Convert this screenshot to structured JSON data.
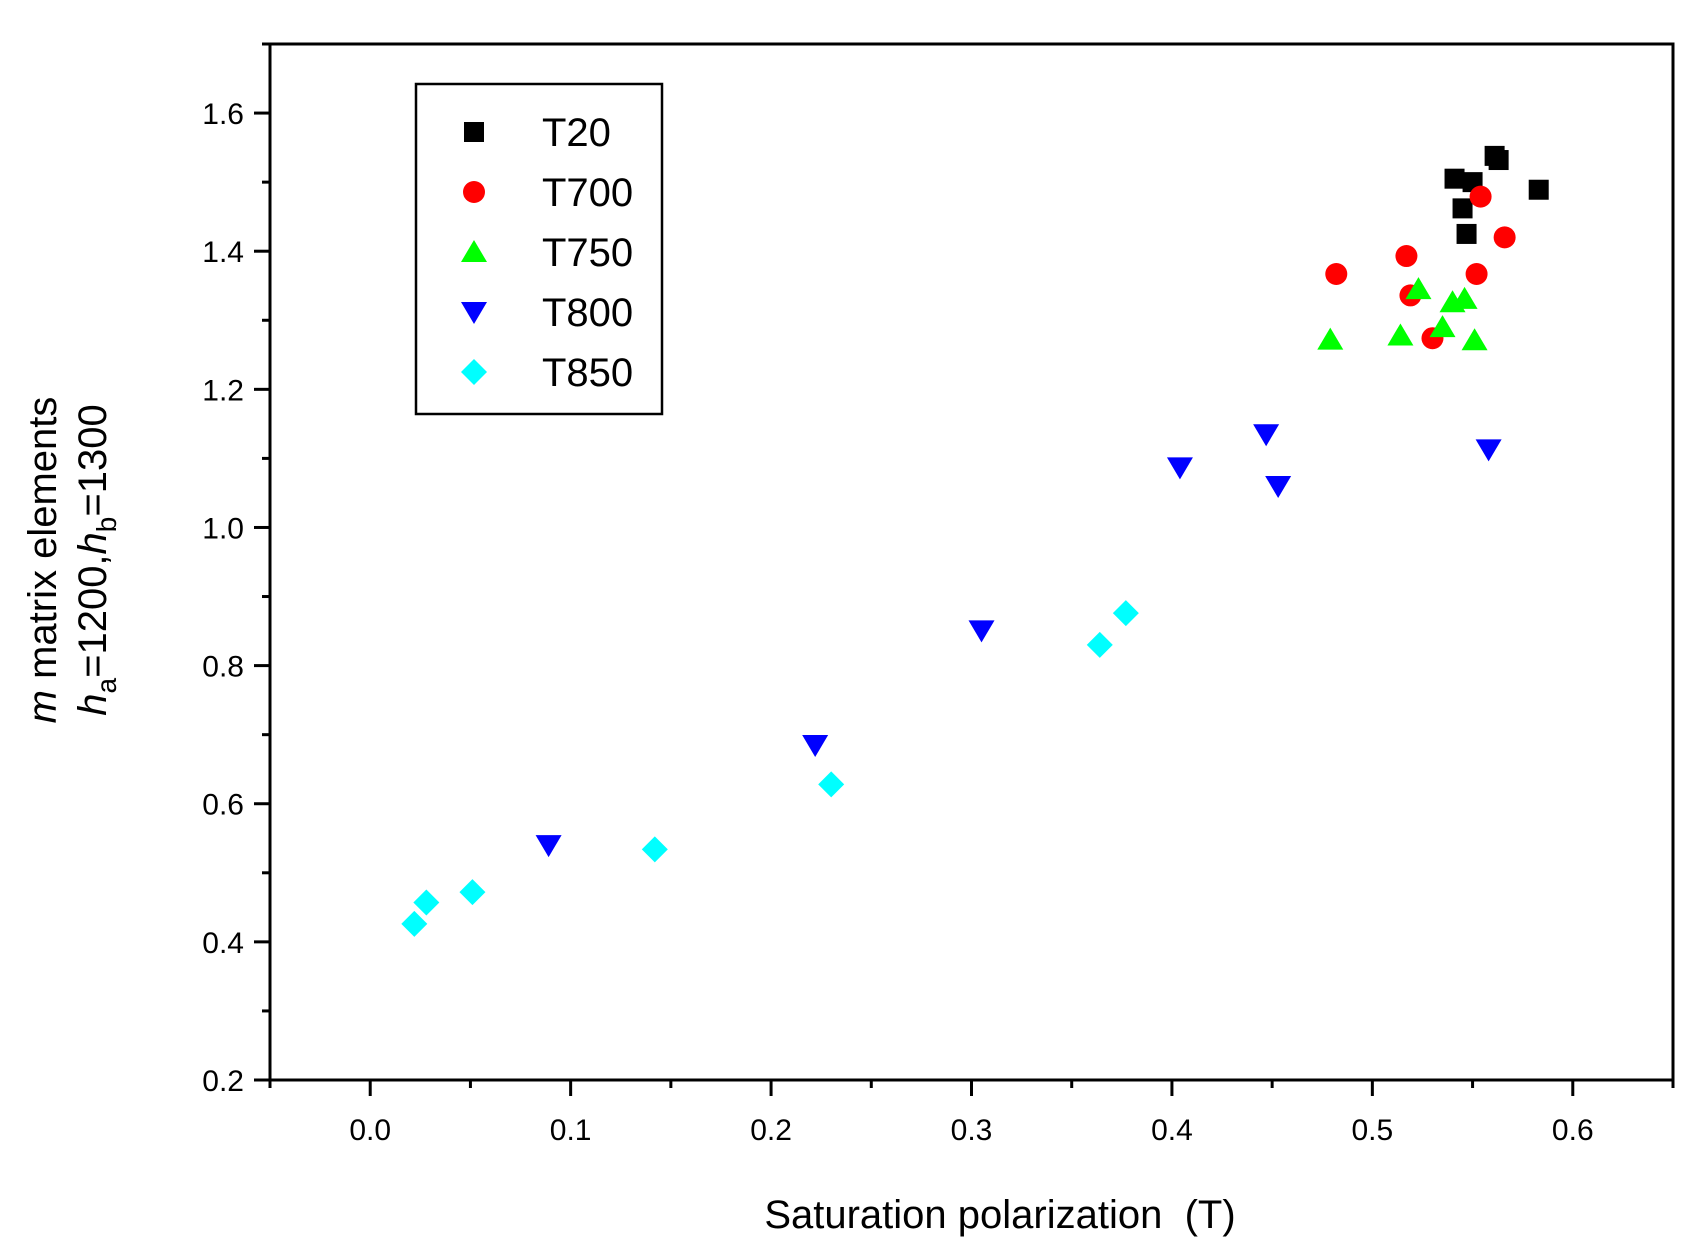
{
  "chart_data": {
    "type": "scatter",
    "title": "",
    "xlabel": "Saturation polarization  (T)",
    "ylabel_line1": {
      "italic": "m",
      "text": " matrix elements"
    },
    "ylabel_line2": {
      "ha": "h",
      "ha_sub": "a",
      "ha_val": "=1200,",
      "hb": "h",
      "hb_sub": "b",
      "hb_val": "=1300"
    },
    "xlim": [
      -0.05,
      0.65
    ],
    "ylim": [
      0.2,
      1.7
    ],
    "xticks": [
      0.0,
      0.1,
      0.2,
      0.3,
      0.4,
      0.5,
      0.6
    ],
    "xtick_labels": [
      "0.0",
      "0.1",
      "0.2",
      "0.3",
      "0.4",
      "0.5",
      "0.6"
    ],
    "yticks": [
      0.2,
      0.4,
      0.6,
      0.8,
      1.0,
      1.2,
      1.4,
      1.6
    ],
    "ytick_labels": [
      "0.2",
      "0.4",
      "0.6",
      "0.8",
      "1.0",
      "1.2",
      "1.4",
      "1.6"
    ],
    "grid": false,
    "legend_position": "top-left",
    "series": [
      {
        "name": "T20",
        "marker": "square",
        "color": "#000000",
        "points": [
          [
            0.541,
            1.505
          ],
          [
            0.55,
            1.5
          ],
          [
            0.545,
            1.462
          ],
          [
            0.547,
            1.425
          ],
          [
            0.561,
            1.538
          ],
          [
            0.563,
            1.532
          ],
          [
            0.583,
            1.489
          ]
        ]
      },
      {
        "name": "T700",
        "marker": "circle",
        "color": "#ff0000",
        "points": [
          [
            0.482,
            1.367
          ],
          [
            0.517,
            1.393
          ],
          [
            0.519,
            1.336
          ],
          [
            0.53,
            1.274
          ],
          [
            0.552,
            1.367
          ],
          [
            0.554,
            1.479
          ],
          [
            0.566,
            1.42
          ]
        ]
      },
      {
        "name": "T750",
        "marker": "triangle-up",
        "color": "#00ff00",
        "points": [
          [
            0.479,
            1.272
          ],
          [
            0.514,
            1.278
          ],
          [
            0.523,
            1.345
          ],
          [
            0.535,
            1.29
          ],
          [
            0.54,
            1.326
          ],
          [
            0.546,
            1.331
          ],
          [
            0.551,
            1.271
          ]
        ]
      },
      {
        "name": "T800",
        "marker": "triangle-down",
        "color": "#0000ff",
        "points": [
          [
            0.089,
            0.54
          ],
          [
            0.222,
            0.685
          ],
          [
            0.305,
            0.851
          ],
          [
            0.404,
            1.087
          ],
          [
            0.447,
            1.135
          ],
          [
            0.453,
            1.06
          ],
          [
            0.558,
            1.113
          ]
        ]
      },
      {
        "name": "T850",
        "marker": "diamond",
        "color": "#00ffff",
        "points": [
          [
            0.022,
            0.426
          ],
          [
            0.028,
            0.457
          ],
          [
            0.051,
            0.472
          ],
          [
            0.142,
            0.534
          ],
          [
            0.23,
            0.628
          ],
          [
            0.364,
            0.83
          ],
          [
            0.377,
            0.876
          ]
        ]
      }
    ]
  }
}
